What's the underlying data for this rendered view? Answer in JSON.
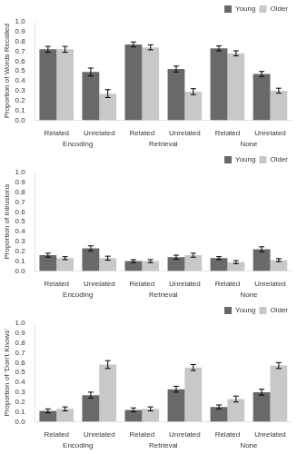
{
  "chart_data": [
    {
      "type": "bar",
      "ylabel": "Proportion of Words Recalled",
      "categories": [
        "Related",
        "Unrelated",
        "Related",
        "Unrelated",
        "Related",
        "Unrelated"
      ],
      "annotations": [
        "Encoding",
        "Retrieval",
        "None"
      ],
      "series": [
        {
          "name": "Young",
          "color": "#696969",
          "values": [
            0.72,
            0.49,
            0.77,
            0.52,
            0.73,
            0.47
          ],
          "errors": [
            0.03,
            0.04,
            0.025,
            0.03,
            0.025,
            0.025
          ]
        },
        {
          "name": "Older",
          "color": "#c8c8c8",
          "values": [
            0.72,
            0.27,
            0.74,
            0.29,
            0.68,
            0.3
          ],
          "errors": [
            0.03,
            0.04,
            0.025,
            0.03,
            0.025,
            0.025
          ]
        }
      ],
      "ylim": [
        0,
        1
      ],
      "yticks": [
        {
          "value": 0,
          "label": "0.0"
        },
        0.1,
        0.2,
        0.3,
        0.4,
        0.5,
        0.6,
        0.7,
        0.8,
        0.9,
        {
          "value": 1,
          "label": "1.0"
        }
      ],
      "grid": false,
      "legend": "upper right"
    },
    {
      "type": "bar",
      "ylabel": "Proportion of Intrusions",
      "categories": [
        "Related",
        "Unrelated",
        "Related",
        "Unrelated",
        "Related",
        "Unrelated"
      ],
      "annotations": [
        "Encoding",
        "Retrieval",
        "None"
      ],
      "series": [
        {
          "name": "Young",
          "color": "#696969",
          "values": [
            0.16,
            0.23,
            0.1,
            0.14,
            0.13,
            0.22
          ],
          "errors": [
            0.02,
            0.025,
            0.015,
            0.02,
            0.015,
            0.025
          ]
        },
        {
          "name": "Older",
          "color": "#c8c8c8",
          "values": [
            0.13,
            0.13,
            0.1,
            0.16,
            0.09,
            0.11
          ],
          "errors": [
            0.015,
            0.02,
            0.015,
            0.02,
            0.015,
            0.015
          ]
        }
      ],
      "ylim": [
        0,
        1
      ],
      "yticks": [
        {
          "value": 0,
          "label": "0.0"
        },
        0.1,
        0.2,
        0.3,
        0.4,
        0.5,
        0.6,
        0.7,
        0.8,
        0.9,
        {
          "value": 1,
          "label": "1.0"
        }
      ],
      "grid": false,
      "legend": "upper right"
    },
    {
      "type": "bar",
      "ylabel": "Proportion of ‘Don’t Knows’",
      "categories": [
        "Related",
        "Unrelated",
        "Related",
        "Unrelated",
        "Related",
        "Unrelated"
      ],
      "annotations": [
        "Encoding",
        "Retrieval",
        "None"
      ],
      "series": [
        {
          "name": "Young",
          "color": "#696969",
          "values": [
            0.11,
            0.27,
            0.12,
            0.33,
            0.15,
            0.3
          ],
          "errors": [
            0.02,
            0.03,
            0.02,
            0.03,
            0.02,
            0.03
          ]
        },
        {
          "name": "Older",
          "color": "#c8c8c8",
          "values": [
            0.13,
            0.58,
            0.13,
            0.55,
            0.23,
            0.57
          ],
          "errors": [
            0.02,
            0.04,
            0.02,
            0.03,
            0.03,
            0.03
          ]
        }
      ],
      "ylim": [
        0,
        1
      ],
      "yticks": [
        {
          "value": 0,
          "label": "0.0"
        },
        0.1,
        0.2,
        0.3,
        0.4,
        0.5,
        0.6,
        0.7,
        0.8,
        0.9,
        {
          "value": 1,
          "label": "1.0"
        }
      ],
      "grid": false,
      "legend": "upper right"
    }
  ]
}
